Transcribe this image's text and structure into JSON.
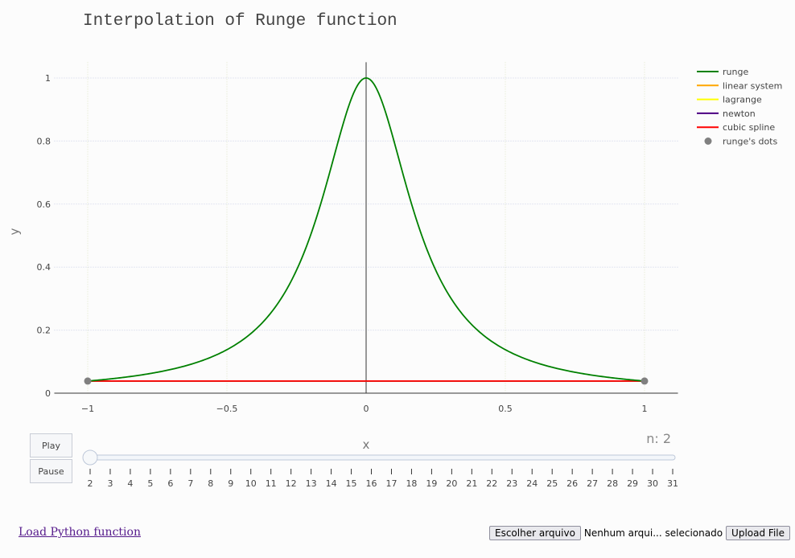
{
  "chart_data": {
    "type": "line",
    "title": "Interpolation of Runge function",
    "xlabel": "x",
    "ylabel": "y",
    "xlim": [
      -1.12,
      1.12
    ],
    "ylim": [
      -0.02,
      1.05
    ],
    "x_ticks": [
      -1,
      -0.5,
      0,
      0.5,
      1
    ],
    "x_tick_labels": [
      "−1",
      "−0.5",
      "0",
      "0.5",
      "1"
    ],
    "y_ticks": [
      0,
      0.2,
      0.4,
      0.6,
      0.8,
      1
    ],
    "y_tick_labels": [
      "0",
      "0.2",
      "0.4",
      "0.6",
      "0.8",
      "1"
    ],
    "grid": true,
    "legend_position": "top-right",
    "series": [
      {
        "name": "runge",
        "kind": "line",
        "color": "#008000",
        "function": "1/(1+25x^2)",
        "x_range": [
          -1,
          1
        ]
      },
      {
        "name": "linear system",
        "kind": "line",
        "color": "#ffa500",
        "x": [
          -1,
          1
        ],
        "y": [
          0.0385,
          0.0385
        ]
      },
      {
        "name": "lagrange",
        "kind": "line",
        "color": "#ffff00",
        "x": [
          -1,
          1
        ],
        "y": [
          0.0385,
          0.0385
        ]
      },
      {
        "name": "newton",
        "kind": "line",
        "color": "#4b0082",
        "x": [
          -1,
          1
        ],
        "y": [
          0.0385,
          0.0385
        ]
      },
      {
        "name": "cubic spline",
        "kind": "line",
        "color": "#ff0000",
        "x": [
          -1,
          1
        ],
        "y": [
          0.0385,
          0.0385
        ]
      },
      {
        "name": "runge's dots",
        "kind": "markers",
        "color": "#808080",
        "x": [
          -1,
          1
        ],
        "y": [
          0.0385,
          0.0385
        ]
      }
    ],
    "slider": {
      "prefix": "n: ",
      "current": 2,
      "values": [
        2,
        3,
        4,
        5,
        6,
        7,
        8,
        9,
        10,
        11,
        12,
        13,
        14,
        15,
        16,
        17,
        18,
        19,
        20,
        21,
        22,
        23,
        24,
        25,
        26,
        27,
        28,
        29,
        30,
        31
      ],
      "current_label": "n: 2"
    }
  },
  "controls": {
    "play_label": "Play",
    "pause_label": "Pause"
  },
  "footer": {
    "load_link": "Load Python function",
    "choose_file_label": "Escolher arquivo",
    "file_status": "Nenhum arqui... selecionado",
    "upload_label": "Upload File"
  }
}
